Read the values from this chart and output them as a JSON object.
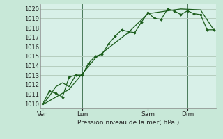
{
  "bg_color": "#c8e8d8",
  "plot_bg_color": "#d8f0e8",
  "grid_color": "#b0c8b8",
  "vline_color": "#4a7a5a",
  "line_color": "#1a5c1a",
  "marker_color": "#1a5c1a",
  "xlabel": "Pression niveau de la mer( hPa )",
  "ylim": [
    1009.5,
    1020.5
  ],
  "yticks": [
    1010,
    1011,
    1012,
    1013,
    1014,
    1015,
    1016,
    1017,
    1018,
    1019,
    1020
  ],
  "xtick_labels": [
    "Ven",
    "Lun",
    "Sam",
    "Dim"
  ],
  "xtick_positions": [
    0,
    3,
    8,
    11
  ],
  "vline_positions": [
    0,
    3,
    8,
    11
  ],
  "xlim": [
    -0.2,
    13.2
  ],
  "series1": {
    "x": [
      0,
      0.5,
      1.0,
      1.5,
      2.0,
      2.5,
      3.0,
      3.5,
      4.0,
      4.5,
      5.0,
      5.5,
      6.0,
      6.5,
      7.0,
      7.5,
      8.0,
      8.5,
      9.0,
      9.5,
      10.0,
      10.5,
      11.0,
      11.5,
      12.0,
      12.5,
      13.0
    ],
    "y": [
      1010.0,
      1011.3,
      1011.1,
      1010.7,
      1012.8,
      1013.0,
      1013.0,
      1014.3,
      1015.0,
      1015.2,
      1016.3,
      1017.1,
      1017.8,
      1017.6,
      1017.5,
      1018.6,
      1019.6,
      1019.0,
      1018.9,
      1020.0,
      1019.8,
      1019.4,
      1019.8,
      1019.5,
      1019.4,
      1017.8,
      1017.8
    ]
  },
  "series2": {
    "x": [
      0,
      2.0,
      4.0,
      6.5,
      8.0,
      10.5,
      12.0,
      13.0
    ],
    "y": [
      1009.9,
      1011.5,
      1014.8,
      1017.5,
      1019.5,
      1020.0,
      1019.9,
      1017.8
    ]
  },
  "series3": {
    "x": [
      0,
      0.5,
      1.0,
      1.5,
      2.0,
      2.5,
      3.0,
      3.5
    ],
    "y": [
      1009.9,
      1010.8,
      1011.8,
      1012.2,
      1011.8,
      1013.0,
      1013.0,
      1014.3
    ]
  }
}
